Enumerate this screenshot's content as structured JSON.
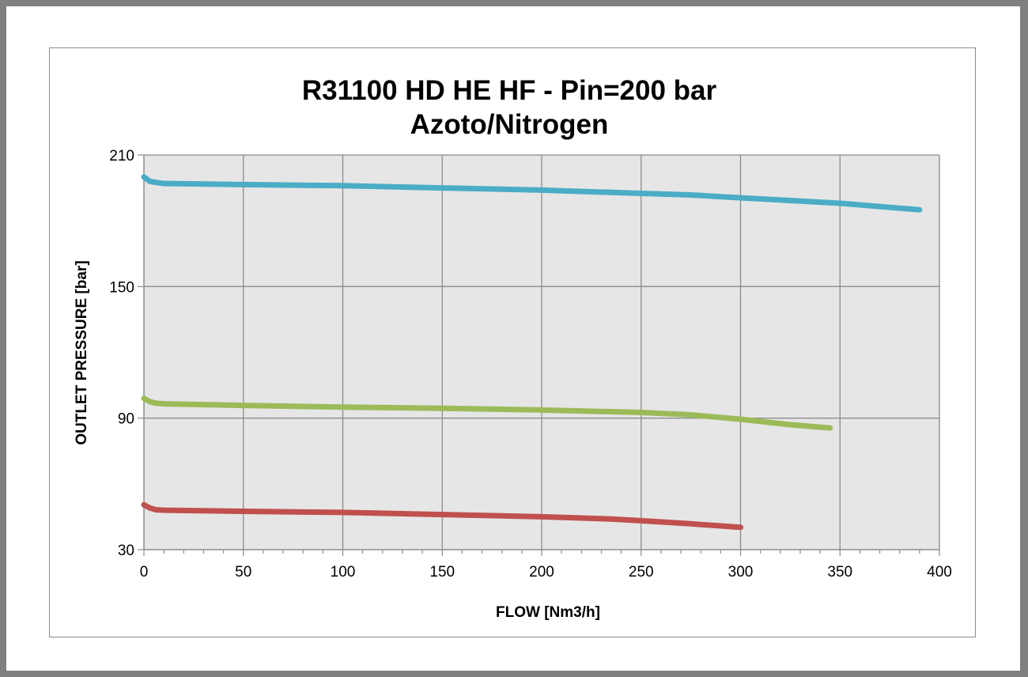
{
  "chart_data": {
    "type": "line",
    "title_lines": [
      "R31100 HD HE HF - Pin=200 bar",
      "Azoto/Nitrogen"
    ],
    "xlabel": "FLOW [Nm3/h]",
    "ylabel": "OUTLET PRESSURE [bar]",
    "xlim": [
      0,
      400
    ],
    "ylim": [
      30,
      210
    ],
    "x_major_ticks": [
      0,
      50,
      100,
      150,
      200,
      250,
      300,
      350,
      400
    ],
    "x_minor_step": 10,
    "y_ticks": [
      30,
      90,
      150,
      210
    ],
    "grid": true,
    "legend": "none",
    "colors": {
      "plot_background": "#e6e6e6",
      "grid": "#8c8c8c",
      "axis": "#8c8c8c"
    },
    "series": [
      {
        "color": "#4bacc6",
        "points": [
          [
            0,
            200
          ],
          [
            3,
            198
          ],
          [
            6,
            197.5
          ],
          [
            10,
            197
          ],
          [
            50,
            196.5
          ],
          [
            100,
            196
          ],
          [
            150,
            195
          ],
          [
            200,
            194
          ],
          [
            250,
            192.5
          ],
          [
            275,
            191.8
          ],
          [
            300,
            190.5
          ],
          [
            350,
            188
          ],
          [
            390,
            185
          ]
        ]
      },
      {
        "color": "#9bbb59",
        "points": [
          [
            0,
            99
          ],
          [
            3,
            97.5
          ],
          [
            6,
            96.8
          ],
          [
            10,
            96.5
          ],
          [
            50,
            95.8
          ],
          [
            100,
            95
          ],
          [
            150,
            94.5
          ],
          [
            200,
            93.7
          ],
          [
            250,
            92.6
          ],
          [
            275,
            91.5
          ],
          [
            300,
            89.5
          ],
          [
            325,
            87
          ],
          [
            345,
            85.5
          ]
        ]
      },
      {
        "color": "#c0504d",
        "points": [
          [
            0,
            50.5
          ],
          [
            3,
            49
          ],
          [
            6,
            48.2
          ],
          [
            10,
            48
          ],
          [
            50,
            47.5
          ],
          [
            100,
            47
          ],
          [
            150,
            46
          ],
          [
            200,
            45
          ],
          [
            235,
            44
          ],
          [
            250,
            43.2
          ],
          [
            275,
            41.8
          ],
          [
            300,
            40.2
          ]
        ]
      }
    ]
  }
}
